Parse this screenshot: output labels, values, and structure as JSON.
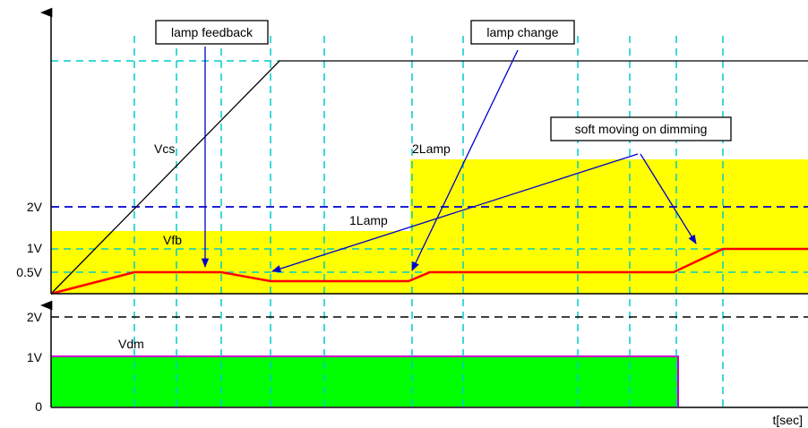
{
  "upper_plot": {
    "axis_labels": {
      "v2": "2V",
      "v1": "1V",
      "v05": "0.5V"
    },
    "curve_labels": {
      "vcs": "Vcs",
      "vfb": "Vfb",
      "lamp2": "2Lamp",
      "lamp1": "1Lamp"
    },
    "fill_color": "#ffff00",
    "vfb_color": "#ff0000",
    "grid_color": "#00cccc",
    "ref_color": "#0000cc"
  },
  "lower_plot": {
    "axis_labels": {
      "v2": "2V",
      "v1": "1V",
      "zero": "0"
    },
    "curve_labels": {
      "vdm": "Vdm"
    },
    "fill_color": "#00ff00",
    "edge_color": "#cc00cc",
    "x_axis_label": "t[sec]"
  },
  "callouts": {
    "lamp_feedback": "lamp feedback",
    "lamp_change": "lamp change",
    "soft_dimming": "soft moving on dimming",
    "arrow_color": "#0000cc"
  }
}
